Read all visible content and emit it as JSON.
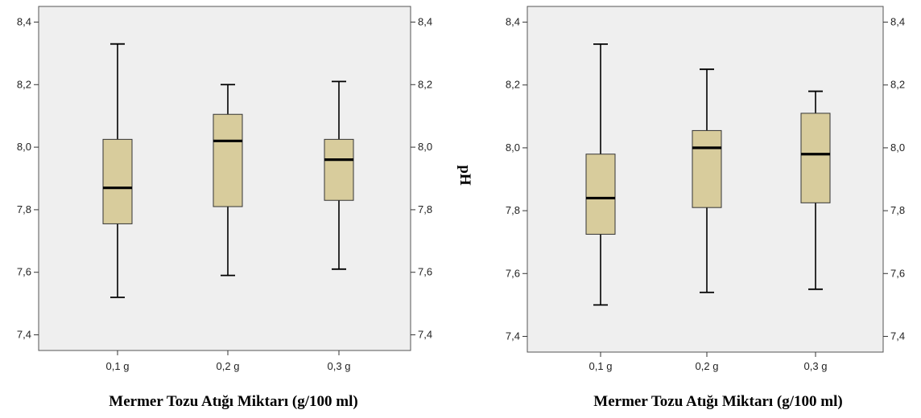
{
  "colors": {
    "plot_bg": "#efefef",
    "box_fill": "#d8cc9c",
    "stroke": "#000000",
    "frame": "#555555"
  },
  "chart_data": [
    {
      "type": "boxplot",
      "xlabel": "Mermer Tozu Atığı Miktarı (g/100 ml)",
      "ylabel_right": "pH",
      "categories": [
        "0,1 g",
        "0,2 g",
        "0,3 g"
      ],
      "ylim": [
        7.35,
        8.45
      ],
      "yticks": [
        7.4,
        7.6,
        7.8,
        8.0,
        8.2,
        8.4
      ],
      "ytick_labels": [
        "7,4",
        "7,6",
        "7,8",
        "8,0",
        "8,2",
        "8,4"
      ],
      "boxes": [
        {
          "min": 7.52,
          "q1": 7.755,
          "median": 7.87,
          "q3": 8.025,
          "max": 8.33
        },
        {
          "min": 7.59,
          "q1": 7.81,
          "median": 8.02,
          "q3": 8.105,
          "max": 8.2
        },
        {
          "min": 7.61,
          "q1": 7.83,
          "median": 7.96,
          "q3": 8.025,
          "max": 8.21
        }
      ]
    },
    {
      "type": "boxplot",
      "xlabel": "Mermer Tozu Atığı Miktarı (g/100 ml)",
      "ylabel_right": "",
      "categories": [
        "0,1 g",
        "0,2 g",
        "0,3 g"
      ],
      "ylim": [
        7.35,
        8.45
      ],
      "yticks": [
        7.4,
        7.6,
        7.8,
        8.0,
        8.2,
        8.4
      ],
      "ytick_labels": [
        "7,4",
        "7,6",
        "7,8",
        "8,0",
        "8,2",
        "8,4"
      ],
      "boxes": [
        {
          "min": 7.5,
          "q1": 7.725,
          "median": 7.84,
          "q3": 7.98,
          "max": 8.33
        },
        {
          "min": 7.54,
          "q1": 7.81,
          "median": 8.0,
          "q3": 8.055,
          "max": 8.25
        },
        {
          "min": 7.55,
          "q1": 7.825,
          "median": 7.98,
          "q3": 8.11,
          "max": 8.18
        }
      ]
    }
  ]
}
